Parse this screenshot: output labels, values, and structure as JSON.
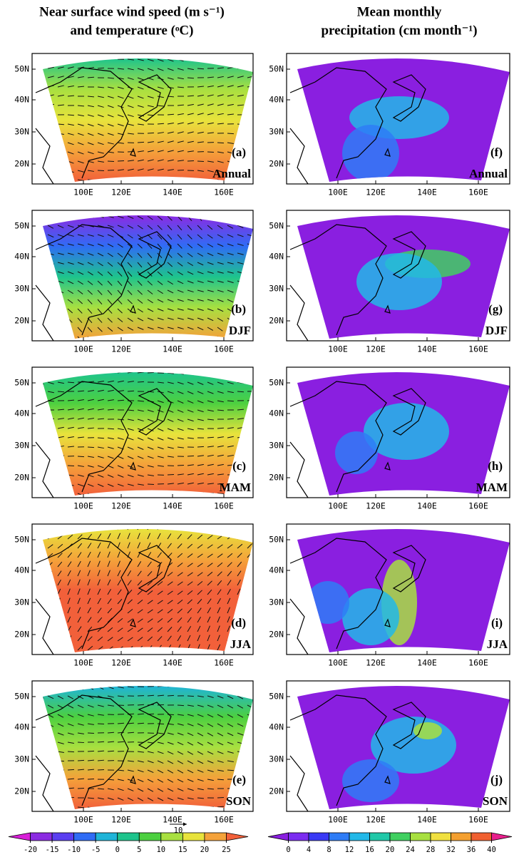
{
  "titles": {
    "left": [
      "Near surface wind speed (m s⁻¹)",
      "and temperature (ᵒC)"
    ],
    "right": [
      "Mean monthly",
      "precipitation (cm month⁻¹)"
    ]
  },
  "lat_labels": [
    "50N",
    "40N",
    "30N",
    "20N"
  ],
  "lon_labels": [
    "100E",
    "120E",
    "140E",
    "160E"
  ],
  "panels": [
    {
      "label": "(a)",
      "season": "Annual"
    },
    {
      "label": "(b)",
      "season": "DJF"
    },
    {
      "label": "(c)",
      "season": "MAM"
    },
    {
      "label": "(d)",
      "season": "JJA"
    },
    {
      "label": "(e)",
      "season": "SON"
    },
    {
      "label": "(f)",
      "season": "Annual"
    },
    {
      "label": "(g)",
      "season": "DJF"
    },
    {
      "label": "(h)",
      "season": "MAM"
    },
    {
      "label": "(i)",
      "season": "JJA"
    },
    {
      "label": "(j)",
      "season": "SON"
    }
  ],
  "colorbars": [
    {
      "ticks": [
        -20,
        -15,
        -10,
        -5,
        0,
        5,
        10,
        15,
        20,
        25
      ],
      "colors": [
        "#d81fd8",
        "#8b2be2",
        "#5a3ef0",
        "#2f6cf5",
        "#1fb4d8",
        "#1ec48c",
        "#4cd040",
        "#a8e040",
        "#e8e33c",
        "#f4a23a",
        "#f2603a"
      ]
    },
    {
      "ticks": [
        0,
        4,
        8,
        12,
        16,
        20,
        24,
        28,
        32,
        36,
        40
      ],
      "colors": [
        "#8a1fe0",
        "#7b2cf0",
        "#3a3af5",
        "#2e7cf6",
        "#22b8e8",
        "#20c8a8",
        "#40d060",
        "#a8e040",
        "#f0e040",
        "#f4a030",
        "#f06030",
        "#e81f8c"
      ]
    }
  ],
  "vector_reference": 10
}
